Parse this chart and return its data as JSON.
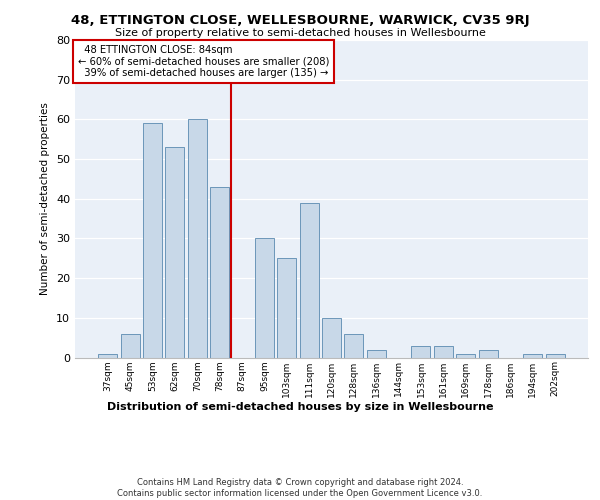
{
  "title1": "48, ETTINGTON CLOSE, WELLESBOURNE, WARWICK, CV35 9RJ",
  "title2": "Size of property relative to semi-detached houses in Wellesbourne",
  "xlabel": "Distribution of semi-detached houses by size in Wellesbourne",
  "ylabel": "Number of semi-detached properties",
  "categories": [
    "37sqm",
    "45sqm",
    "53sqm",
    "62sqm",
    "70sqm",
    "78sqm",
    "87sqm",
    "95sqm",
    "103sqm",
    "111sqm",
    "120sqm",
    "128sqm",
    "136sqm",
    "144sqm",
    "153sqm",
    "161sqm",
    "169sqm",
    "178sqm",
    "186sqm",
    "194sqm",
    "202sqm"
  ],
  "values": [
    1,
    6,
    59,
    53,
    60,
    43,
    0,
    30,
    25,
    39,
    10,
    6,
    2,
    0,
    3,
    3,
    1,
    2,
    0,
    1,
    1
  ],
  "bar_color": "#c8d8e8",
  "bar_edge_color": "#5a8ab0",
  "property_label": "48 ETTINGTON CLOSE: 84sqm",
  "smaller_pct": "60%",
  "smaller_n": 208,
  "larger_pct": "39%",
  "larger_n": 135,
  "vline_pos": 5.5,
  "ylim": [
    0,
    80
  ],
  "yticks": [
    0,
    10,
    20,
    30,
    40,
    50,
    60,
    70,
    80
  ],
  "background_color": "#eaf0f8",
  "footer": "Contains HM Land Registry data © Crown copyright and database right 2024.\nContains public sector information licensed under the Open Government Licence v3.0.",
  "vline_color": "#cc0000",
  "ann_box_edge": "#cc0000"
}
